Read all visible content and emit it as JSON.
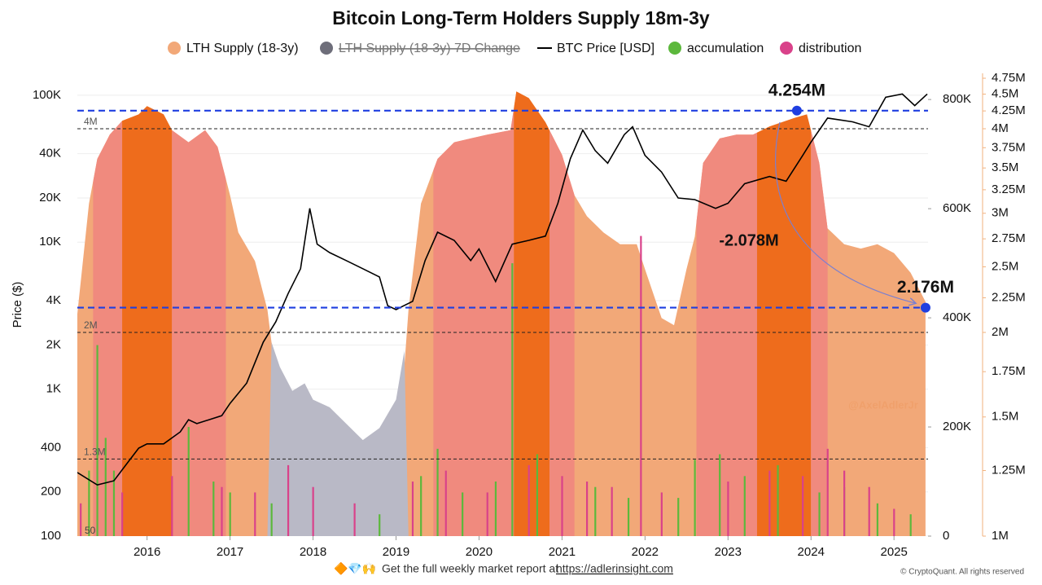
{
  "chart_data": {
    "type": "line",
    "title": "Bitcoin Long-Term Holders Supply 18m-3y",
    "ylabel": "Price ($)",
    "xlim": [
      2015.16,
      2025.41
    ],
    "xticks": [
      2016,
      2017,
      2018,
      2019,
      2020,
      2021,
      2022,
      2023,
      2024,
      2025
    ],
    "yscale": "log",
    "ylim": [
      100,
      141000
    ],
    "yticks": [
      100,
      200,
      400,
      {
        "value": 1000,
        "label": "1K"
      },
      {
        "value": 2000,
        "label": "2K"
      },
      {
        "value": 4000,
        "label": "4K"
      },
      {
        "value": 10000,
        "label": "10K"
      },
      {
        "value": 20000,
        "label": "20K"
      },
      {
        "value": 40000,
        "label": "40K"
      },
      {
        "value": 100000,
        "label": "100K"
      }
    ],
    "grid": true,
    "y2lim": [
      0,
      848000
    ],
    "y2ticks": [
      0,
      {
        "value": 200000,
        "label": "200K"
      },
      {
        "value": 400000,
        "label": "400K"
      },
      {
        "value": 600000,
        "label": "600K"
      },
      {
        "value": 800000,
        "label": "800K"
      }
    ],
    "y3scale": "log",
    "y3lim": [
      1000000,
      4830000
    ],
    "y3ticks": [
      {
        "value": 1000000,
        "label": "1M"
      },
      {
        "value": 1250000,
        "label": "1.25M"
      },
      {
        "value": 1500000,
        "label": "1.5M"
      },
      {
        "value": 1750000,
        "label": "1.75M"
      },
      {
        "value": 2000000,
        "label": "2M"
      },
      {
        "value": 2250000,
        "label": "2.25M"
      },
      {
        "value": 2500000,
        "label": "2.5M"
      },
      {
        "value": 2750000,
        "label": "2.75M"
      },
      {
        "value": 3000000,
        "label": "3M"
      },
      {
        "value": 3250000,
        "label": "3.25M"
      },
      {
        "value": 3500000,
        "label": "3.5M"
      },
      {
        "value": 3750000,
        "label": "3.75M"
      },
      {
        "value": 4000000,
        "label": "4M"
      },
      {
        "value": 4250000,
        "label": "4.25M"
      },
      {
        "value": 4500000,
        "label": "4.5M"
      },
      {
        "value": 4750000,
        "label": "4.75M"
      }
    ],
    "y3_axis_color": "#f2b27e",
    "series": [
      {
        "name": "LTH Supply (18-3y)",
        "color": "#f2a878",
        "axis": "y3",
        "kind": "area",
        "x": [
          2015.16,
          2015.3,
          2015.4,
          2015.55,
          2015.7,
          2015.9,
          2016.0,
          2016.2,
          2016.3,
          2016.5,
          2016.7,
          2016.85,
          2017.0,
          2017.1,
          2017.3,
          2017.45,
          2017.5,
          2017.55,
          2019.05,
          2019.1,
          2019.15,
          2019.3,
          2019.5,
          2019.7,
          2019.9,
          2020.1,
          2020.38,
          2020.45,
          2020.6,
          2020.8,
          2021.0,
          2021.15,
          2021.3,
          2021.5,
          2021.7,
          2021.9,
          2022.0,
          2022.2,
          2022.35,
          2022.5,
          2022.6,
          2022.7,
          2022.9,
          2023.1,
          2023.3,
          2023.5,
          2023.8,
          2023.95,
          2024.1,
          2024.2,
          2024.4,
          2024.6,
          2024.8,
          2025.0,
          2025.2,
          2025.38
        ],
        "values": [
          2130000,
          3100000,
          3610000,
          3920000,
          4110000,
          4200000,
          4320000,
          4200000,
          3980000,
          3820000,
          3980000,
          3760000,
          3190000,
          2810000,
          2550000,
          2160000,
          1930000,
          1000000,
          1000000,
          1780000,
          2160000,
          3100000,
          3610000,
          3820000,
          3870000,
          3920000,
          3980000,
          4540000,
          4440000,
          4090000,
          3660000,
          3190000,
          2970000,
          2810000,
          2700000,
          2700000,
          2480000,
          2100000,
          2050000,
          2480000,
          2770000,
          3560000,
          3870000,
          3920000,
          3920000,
          4030000,
          4150000,
          4200000,
          3560000,
          2850000,
          2700000,
          2660000,
          2700000,
          2620000,
          2450000,
          2220000
        ]
      },
      {
        "name": "LTH Supply (18-3y) 7D Change",
        "color": "#b9b9c6",
        "axis": "y2",
        "kind": "area",
        "legend_disabled": true,
        "x": [
          2017.45,
          2017.5,
          2017.6,
          2017.75,
          2017.9,
          2018.0,
          2018.2,
          2018.4,
          2018.6,
          2018.8,
          2019.0,
          2019.1,
          2019.15
        ],
        "values": [
          0,
          355000,
          310000,
          266000,
          280000,
          250000,
          236000,
          206000,
          176000,
          198000,
          250000,
          340000,
          0
        ]
      },
      {
        "name": "BTC Price [USD]",
        "color": "#000000",
        "axis": "y",
        "kind": "line",
        "x": [
          2015.16,
          2015.4,
          2015.6,
          2015.75,
          2015.9,
          2016.0,
          2016.2,
          2016.4,
          2016.5,
          2016.6,
          2016.9,
          2017.0,
          2017.2,
          2017.4,
          2017.55,
          2017.7,
          2017.85,
          2017.96,
          2018.05,
          2018.2,
          2018.4,
          2018.6,
          2018.8,
          2018.9,
          2019.0,
          2019.2,
          2019.35,
          2019.5,
          2019.7,
          2019.9,
          2020.0,
          2020.2,
          2020.4,
          2020.6,
          2020.8,
          2020.95,
          2021.1,
          2021.25,
          2021.4,
          2021.55,
          2021.75,
          2021.85,
          2022.0,
          2022.2,
          2022.4,
          2022.6,
          2022.85,
          2023.0,
          2023.2,
          2023.5,
          2023.7,
          2023.9,
          2024.0,
          2024.2,
          2024.5,
          2024.7,
          2024.9,
          2025.1,
          2025.25,
          2025.4
        ],
        "values": [
          271,
          223,
          238,
          308,
          397,
          424,
          424,
          512,
          620,
          583,
          660,
          800,
          1100,
          2090,
          2870,
          4480,
          6600,
          17000,
          9700,
          8500,
          7500,
          6600,
          5800,
          3700,
          3480,
          3960,
          7500,
          11700,
          10300,
          7500,
          9000,
          5400,
          9700,
          10300,
          11000,
          18400,
          37000,
          58000,
          42000,
          34500,
          54000,
          61000,
          39000,
          30000,
          20000,
          19500,
          17000,
          18400,
          25000,
          28000,
          26000,
          39000,
          48000,
          70000,
          66000,
          61000,
          97000,
          102000,
          85000,
          102000
        ]
      },
      {
        "name": "accumulation",
        "color": "#5cb83c",
        "axis": "y2",
        "kind": "bars",
        "x": [
          2015.3,
          2015.4,
          2015.5,
          2015.6,
          2016.5,
          2016.8,
          2017.0,
          2017.5,
          2018.8,
          2019.3,
          2019.5,
          2019.8,
          2020.2,
          2020.4,
          2020.7,
          2021.4,
          2021.8,
          2022.4,
          2022.6,
          2022.9,
          2023.2,
          2023.6,
          2024.1,
          2024.4,
          2024.8,
          2025.2
        ],
        "values": [
          120000,
          350000,
          180000,
          120000,
          200000,
          100000,
          80000,
          60000,
          40000,
          110000,
          160000,
          80000,
          100000,
          500000,
          150000,
          90000,
          70000,
          70000,
          140000,
          150000,
          110000,
          130000,
          80000,
          90000,
          60000,
          40000
        ]
      },
      {
        "name": "distribution",
        "color": "#d9428a",
        "axis": "y2",
        "kind": "bars",
        "x": [
          2015.2,
          2015.7,
          2016.3,
          2016.9,
          2017.3,
          2017.7,
          2018.0,
          2018.5,
          2019.2,
          2019.6,
          2020.1,
          2020.6,
          2021.0,
          2021.3,
          2021.6,
          2021.95,
          2022.2,
          2023.0,
          2023.5,
          2023.9,
          2024.2,
          2024.4,
          2024.7,
          2025.0
        ],
        "values": [
          60000,
          80000,
          110000,
          90000,
          80000,
          130000,
          90000,
          60000,
          100000,
          120000,
          80000,
          130000,
          110000,
          100000,
          90000,
          550000,
          80000,
          100000,
          120000,
          110000,
          160000,
          120000,
          90000,
          50000
        ]
      }
    ],
    "bands": [
      {
        "from": 2015.35,
        "to": 2015.7,
        "color": "#f08a7e"
      },
      {
        "from": 2015.7,
        "to": 2016.3,
        "color": "#ee6c1c"
      },
      {
        "from": 2016.3,
        "to": 2016.95,
        "color": "#f08a7e"
      },
      {
        "from": 2019.45,
        "to": 2020.42,
        "color": "#f08a7e"
      },
      {
        "from": 2020.42,
        "to": 2020.85,
        "color": "#ee6c1c"
      },
      {
        "from": 2020.85,
        "to": 2021.15,
        "color": "#f08a7e"
      },
      {
        "from": 2022.62,
        "to": 2023.35,
        "color": "#f08a7e"
      },
      {
        "from": 2023.35,
        "to": 2024.0,
        "color": "#ee6c1c"
      },
      {
        "from": 2024.0,
        "to": 2024.2,
        "color": "#f08a7e"
      }
    ],
    "level_lines": [
      {
        "value": 4000000,
        "label": "4M"
      },
      {
        "value": 2000000,
        "label": "2M"
      },
      {
        "value": 1300000,
        "label": "1.3M"
      }
    ],
    "reference_lines": [
      {
        "value": 4254000,
        "label": "4.254M",
        "marker_x": 2023.83,
        "color": "#1f3fe0"
      },
      {
        "value": 2176000,
        "label": "2.176M",
        "marker_x": 2025.38,
        "color": "#1f3fe0"
      }
    ],
    "change_label": "-2.078M",
    "bottom_label": "50",
    "watermark": "@AxelAdlerJr"
  },
  "footer": {
    "icons": "🔶💎🙌",
    "text": "Get the full weekly market report at",
    "link": "https://adlerinsight.com",
    "copyright": "© CryptoQuant. All rights reserved"
  }
}
